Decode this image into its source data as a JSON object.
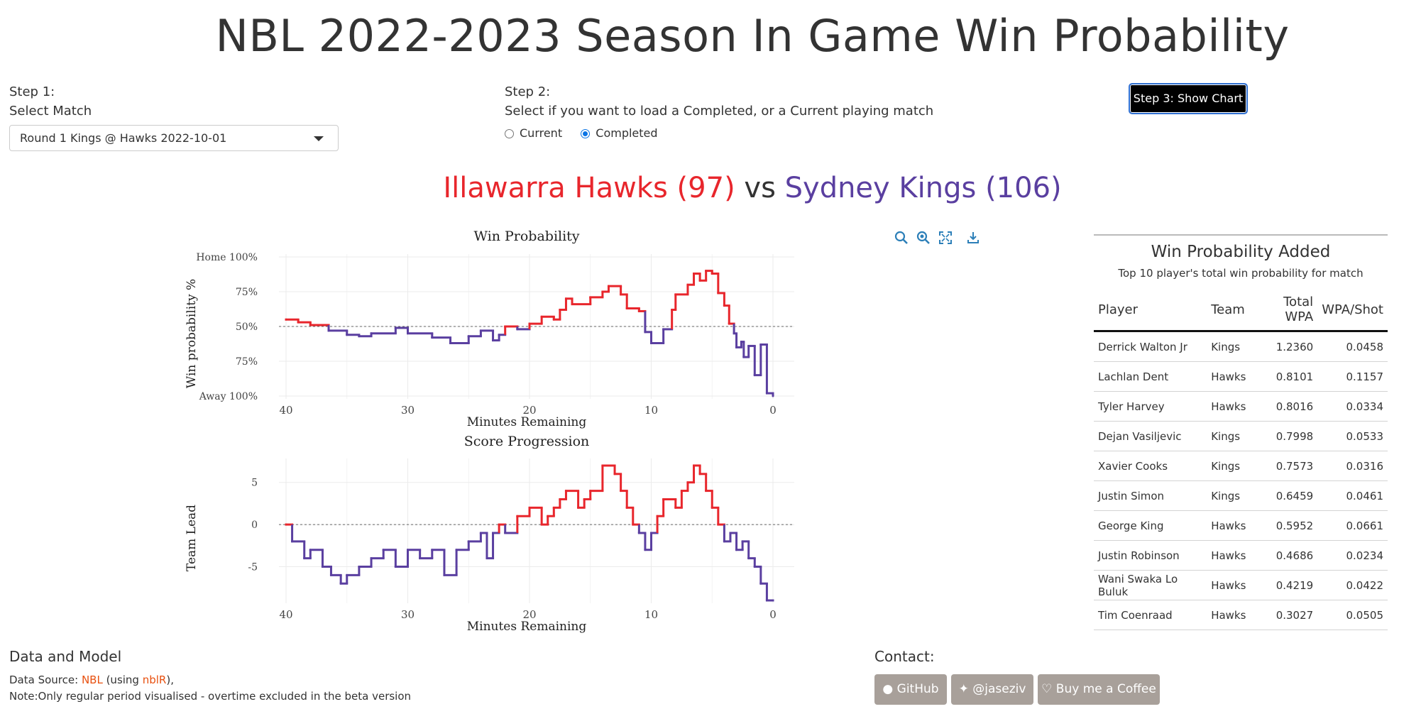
{
  "header": {
    "title": "NBL 2022-2023 Season In Game Win Probability"
  },
  "step1": {
    "label": "Step 1:",
    "sublabel": "Select Match",
    "selected_match": "Round 1 Kings @ Hawks 2022-10-01"
  },
  "step2": {
    "label": "Step 2:",
    "sublabel": "Select if you want to load a Completed, or a Current playing match",
    "options": [
      "Current",
      "Completed"
    ],
    "selected": "Completed"
  },
  "step3": {
    "button_label": "Step 3: Show Chart"
  },
  "matchup": {
    "home": "Illawarra Hawks (97)",
    "vs": "vs",
    "away": "Sydney Kings (106)",
    "home_color": "#e8262c",
    "away_color": "#5a3fa0"
  },
  "colors": {
    "home": "#e8262c",
    "away": "#5a3fa0",
    "button_bg": "#000000",
    "link": "#e8500f",
    "social_bg": "#a8a09a"
  },
  "modebar": {
    "icons": [
      "zoom-icon",
      "zoom-reset-icon",
      "autoscale-icon",
      "download-icon"
    ]
  },
  "chart_data": [
    {
      "type": "line",
      "title": "Win Probability",
      "xlabel": "Minutes Remaining",
      "ylabel": "Win probability %",
      "xlim": [
        40,
        0
      ],
      "ylim": [
        0,
        100
      ],
      "x_ticks": [
        "40",
        "30",
        "20",
        "10",
        "0"
      ],
      "y_ticks": [
        "Away 100%",
        "75%",
        "50%",
        "75%",
        "Home 100%"
      ],
      "reference_line": 50,
      "step": true,
      "x": [
        40,
        39,
        38,
        36.5,
        35,
        34,
        33,
        31,
        30,
        28,
        26.5,
        25,
        24,
        23,
        22.5,
        22,
        21,
        20,
        19,
        18,
        17.5,
        17,
        16.5,
        15,
        14,
        13.5,
        12.5,
        12,
        11,
        10.5,
        10,
        9,
        8.3,
        8,
        7,
        6.5,
        6,
        5.5,
        5,
        4.5,
        4,
        3.6,
        3.2,
        3,
        2.6,
        2.4,
        2,
        1.5,
        1,
        0.5,
        0
      ],
      "y": [
        55,
        53,
        51,
        47,
        44,
        43,
        45,
        49,
        45,
        42,
        38,
        43,
        47,
        40,
        44,
        50,
        48,
        52,
        57,
        55,
        62,
        70,
        66,
        71,
        75,
        79,
        73,
        63,
        61,
        46,
        38,
        48,
        62,
        73,
        80,
        88,
        83,
        90,
        88,
        74,
        65,
        52,
        45,
        35,
        39,
        28,
        36,
        15,
        37,
        2,
        0
      ]
    },
    {
      "type": "line",
      "title": "Score Progression",
      "xlabel": "Minutes Remaining",
      "ylabel": "Team Lead",
      "xlim": [
        40,
        0
      ],
      "ylim": [
        -9,
        7.5
      ],
      "x_ticks": [
        "40",
        "30",
        "20",
        "10",
        "0"
      ],
      "y_ticks": [
        "5",
        "0",
        "-5"
      ],
      "reference_line": 0,
      "step": true,
      "x": [
        40,
        39.5,
        38.5,
        38,
        37,
        36.3,
        35.5,
        35,
        34,
        33,
        32,
        31,
        30,
        29,
        28,
        27,
        26,
        25,
        24,
        23.5,
        23,
        22.5,
        22,
        21,
        20,
        19,
        18.5,
        18,
        17.5,
        17,
        16,
        15.5,
        15,
        14,
        13,
        12.5,
        12,
        11.5,
        11,
        10.5,
        10,
        9.5,
        9,
        8,
        7.5,
        7,
        6.5,
        6,
        5.5,
        5,
        4.5,
        4,
        3.5,
        3,
        2.5,
        2,
        1.5,
        1,
        0.5,
        0
      ],
      "y": [
        0,
        -2,
        -4,
        -3,
        -5,
        -6,
        -7,
        -6,
        -5,
        -4,
        -3,
        -5,
        -3,
        -4,
        -3,
        -6,
        -3,
        -2,
        -1,
        -4,
        -1,
        0,
        -1,
        1,
        2,
        0,
        1,
        2,
        3,
        4,
        2,
        3,
        4,
        7,
        6,
        4,
        2,
        0,
        -1,
        -3,
        -1,
        1,
        3,
        2,
        4,
        5,
        7,
        6,
        4,
        2,
        0,
        -2,
        -1,
        -3,
        -2,
        -4,
        -5,
        -7,
        -9,
        -9
      ]
    }
  ],
  "wpa": {
    "title": "Win Probability Added",
    "subtitle": "Top 10 player's total win probability for match",
    "columns": [
      "Player",
      "Team",
      "Total WPA",
      "WPA/Shot"
    ],
    "rows": [
      [
        "Derrick Walton Jr",
        "Kings",
        "1.2360",
        "0.0458"
      ],
      [
        "Lachlan Dent",
        "Hawks",
        "0.8101",
        "0.1157"
      ],
      [
        "Tyler Harvey",
        "Hawks",
        "0.8016",
        "0.0334"
      ],
      [
        "Dejan Vasiljevic",
        "Kings",
        "0.7998",
        "0.0533"
      ],
      [
        "Xavier Cooks",
        "Kings",
        "0.7573",
        "0.0316"
      ],
      [
        "Justin Simon",
        "Kings",
        "0.6459",
        "0.0461"
      ],
      [
        "George King",
        "Hawks",
        "0.5952",
        "0.0661"
      ],
      [
        "Justin Robinson",
        "Hawks",
        "0.4686",
        "0.0234"
      ],
      [
        "Wani Swaka Lo Buluk",
        "Hawks",
        "0.4219",
        "0.0422"
      ],
      [
        "Tim Coenraad",
        "Hawks",
        "0.3027",
        "0.0505"
      ]
    ]
  },
  "footer": {
    "heading": "Data and Model",
    "source_prefix": "Data Source: ",
    "source_link": "NBL",
    "source_mid": " (using ",
    "source_pkg": "nblR",
    "source_suffix": "),",
    "note": "Note:Only regular period visualised - overtime excluded in the beta version",
    "contact_heading": "Contact:",
    "github_label": "GitHub",
    "twitter_label": "@jaseziv",
    "coffee_label": "Buy me a Coffee"
  }
}
